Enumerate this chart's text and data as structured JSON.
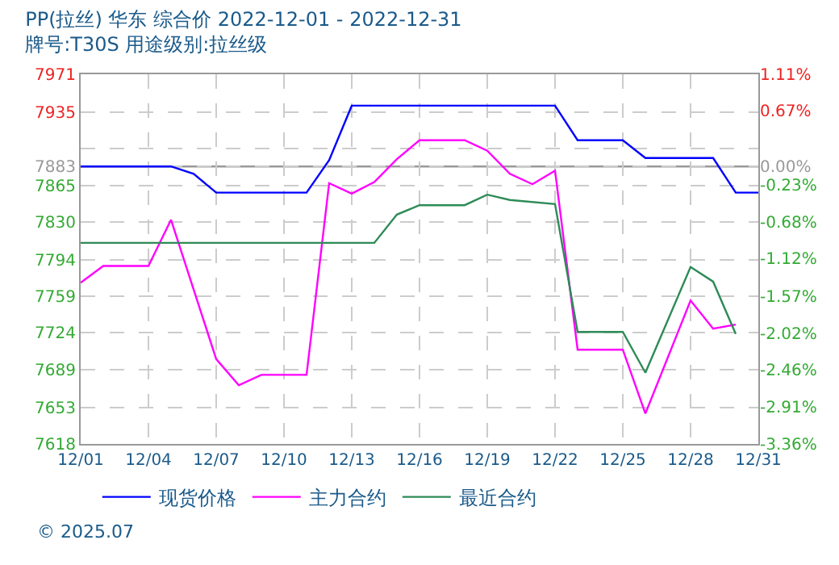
{
  "chart_data": {
    "type": "line",
    "title": "PP(拉丝) 华东 综合价 2022-12-01 - 2022-12-31",
    "subtitle": "牌号:T30S 用途级别:拉丝级",
    "xlim": [
      "2022-12-01",
      "2022-12-31"
    ],
    "xticks": [
      {
        "value": "2022-12-01",
        "label": "12/01"
      },
      {
        "value": "2022-12-04",
        "label": "12/04"
      },
      {
        "value": "2022-12-07",
        "label": "12/07"
      },
      {
        "value": "2022-12-10",
        "label": "12/10"
      },
      {
        "value": "2022-12-13",
        "label": "12/13"
      },
      {
        "value": "2022-12-16",
        "label": "12/16"
      },
      {
        "value": "2022-12-19",
        "label": "12/19"
      },
      {
        "value": "2022-12-22",
        "label": "12/22"
      },
      {
        "value": "2022-12-25",
        "label": "12/25"
      },
      {
        "value": "2022-12-28",
        "label": "12/28"
      },
      {
        "value": "2022-12-31",
        "label": "12/31"
      }
    ],
    "ylim": [
      7618,
      7971
    ],
    "yticks": [
      7971,
      7935,
      {
        "value": 7900,
        "label": null
      },
      7883,
      7865,
      7830,
      7794,
      7759,
      7724,
      7689,
      7653,
      7618
    ],
    "y2lim": [
      -3.36,
      1.11
    ],
    "y2ticks": [
      {
        "value": 1.11,
        "label": "1.11%"
      },
      {
        "value": 0.67,
        "label": "0.67%"
      },
      {
        "value": 0,
        "label": "0.00%"
      },
      {
        "value": -0.23,
        "label": "-0.23%"
      },
      {
        "value": -0.68,
        "label": "-0.68%"
      },
      {
        "value": -1.12,
        "label": "-1.12%"
      },
      {
        "value": -1.57,
        "label": "-1.57%"
      },
      {
        "value": -2.02,
        "label": "-2.02%"
      },
      {
        "value": -2.46,
        "label": "-2.46%"
      },
      {
        "value": -2.91,
        "label": "-2.91%"
      },
      {
        "value": -3.36,
        "label": "-3.36%"
      }
    ],
    "ref_lines": [
      {
        "axis": "y",
        "value": 7883,
        "label": null,
        "color": "#999999"
      }
    ],
    "grid": true,
    "legend": "bottom",
    "marker": "none",
    "line_style": "solid",
    "annotations": [
      "© 2025.07"
    ],
    "series": [
      {
        "name": "现货价格",
        "color": "#0000ff",
        "x": [
          "2022-12-01",
          "2022-12-05",
          "2022-12-06",
          "2022-12-07",
          "2022-12-11",
          "2022-12-12",
          "2022-12-13",
          "2022-12-22",
          "2022-12-23",
          "2022-12-25",
          "2022-12-26",
          "2022-12-29",
          "2022-12-30",
          "2022-12-31"
        ],
        "values": [
          7883,
          7883,
          7876,
          7858,
          7858,
          7889,
          7941,
          7941,
          7908,
          7908,
          7891,
          7891,
          7858,
          7858
        ]
      },
      {
        "name": "主力合约",
        "color": "#ff00ff",
        "x": [
          "2022-12-01",
          "2022-12-02",
          "2022-12-04",
          "2022-12-05",
          "2022-12-07",
          "2022-12-08",
          "2022-12-09",
          "2022-12-11",
          "2022-12-12",
          "2022-12-13",
          "2022-12-14",
          "2022-12-15",
          "2022-12-16",
          "2022-12-18",
          "2022-12-19",
          "2022-12-20",
          "2022-12-21",
          "2022-12-22",
          "2022-12-23",
          "2022-12-25",
          "2022-12-26",
          "2022-12-28",
          "2022-12-29",
          "2022-12-30"
        ],
        "values": [
          7772,
          7788,
          7788,
          7832,
          7699,
          7674,
          7684,
          7684,
          7867,
          7857,
          7868,
          7890,
          7908,
          7908,
          7898,
          7876,
          7866,
          7879,
          7708,
          7708,
          7647,
          7755,
          7728,
          7732
        ]
      },
      {
        "name": "最近合约",
        "color": "#2e8b57",
        "x": [
          "2022-12-01",
          "2022-12-14",
          "2022-12-15",
          "2022-12-16",
          "2022-12-18",
          "2022-12-19",
          "2022-12-20",
          "2022-12-22",
          "2022-12-23",
          "2022-12-25",
          "2022-12-26",
          "2022-12-28",
          "2022-12-29",
          "2022-12-30"
        ],
        "values": [
          7810,
          7810,
          7837,
          7846,
          7846,
          7856,
          7851,
          7847,
          7725,
          7725,
          7686,
          7787,
          7773,
          7723
        ]
      }
    ]
  }
}
